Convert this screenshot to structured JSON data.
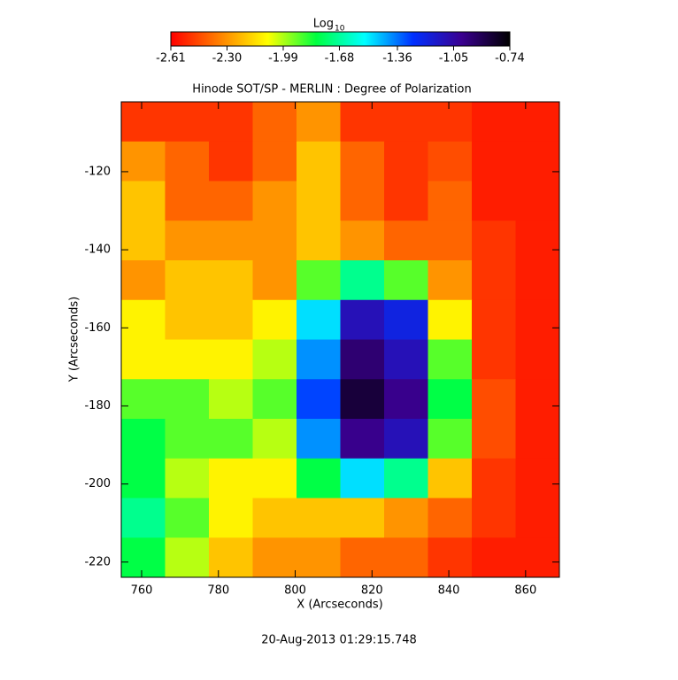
{
  "chart_data": {
    "type": "heatmap",
    "title": "Hinode SOT/SP - MERLIN : Degree of Polarization",
    "xlabel": "X (Arcseconds)",
    "ylabel": "Y (Arcseconds)",
    "footer": "20-Aug-2013 01:29:15.748",
    "colorbar_label": "Log",
    "colorbar_label_sub": "10",
    "colormap": [
      "#ff0000",
      "#ff8000",
      "#ffff00",
      "#00ff40",
      "#00ffff",
      "#0030ff",
      "#3a0090",
      "#000000"
    ],
    "zlim": [
      -2.61,
      -0.74
    ],
    "zticks": [
      -2.61,
      {
        "value": -2.3,
        "label": "-2.30"
      },
      -1.99,
      -1.68,
      -1.36,
      -1.05,
      -0.74
    ],
    "xlim": [
      754.7,
      868.8
    ],
    "ylim": [
      -223.9,
      -102.1
    ],
    "xticks": [
      760,
      780,
      800,
      820,
      840,
      860
    ],
    "yticks": [
      -120,
      -140,
      -160,
      -180,
      -200,
      -220
    ],
    "z": [
      [
        -2.5,
        -2.5,
        -2.5,
        -2.4,
        -2.3,
        -2.5,
        -2.5,
        -2.5,
        -2.55,
        -2.55
      ],
      [
        -2.3,
        -2.4,
        -2.5,
        -2.4,
        -2.2,
        -2.4,
        -2.5,
        -2.45,
        -2.55,
        -2.55
      ],
      [
        -2.2,
        -2.4,
        -2.4,
        -2.3,
        -2.2,
        -2.4,
        -2.5,
        -2.4,
        -2.55,
        -2.55
      ],
      [
        -2.2,
        -2.3,
        -2.3,
        -2.3,
        -2.2,
        -2.3,
        -2.4,
        -2.4,
        -2.5,
        -2.55
      ],
      [
        -2.3,
        -2.2,
        -2.2,
        -2.3,
        -1.9,
        -1.7,
        -1.9,
        -2.3,
        -2.5,
        -2.55
      ],
      [
        -2.1,
        -2.2,
        -2.2,
        -2.1,
        -1.5,
        -1.1,
        -1.2,
        -2.1,
        -2.5,
        -2.55
      ],
      [
        -2.1,
        -2.1,
        -2.1,
        -2.0,
        -1.4,
        -0.95,
        -1.1,
        -1.9,
        -2.5,
        -2.55
      ],
      [
        -1.9,
        -1.9,
        -2.0,
        -1.9,
        -1.3,
        -0.85,
        -1.0,
        -1.8,
        -2.45,
        -2.55
      ],
      [
        -1.8,
        -1.9,
        -1.9,
        -2.0,
        -1.4,
        -1.0,
        -1.1,
        -1.9,
        -2.45,
        -2.55
      ],
      [
        -1.8,
        -2.0,
        -2.1,
        -2.1,
        -1.8,
        -1.5,
        -1.7,
        -2.2,
        -2.5,
        -2.55
      ],
      [
        -1.7,
        -1.9,
        -2.1,
        -2.2,
        -2.2,
        -2.2,
        -2.3,
        -2.4,
        -2.5,
        -2.55
      ],
      [
        -1.8,
        -2.0,
        -2.2,
        -2.3,
        -2.3,
        -2.4,
        -2.4,
        -2.5,
        -2.55,
        -2.55
      ]
    ]
  }
}
